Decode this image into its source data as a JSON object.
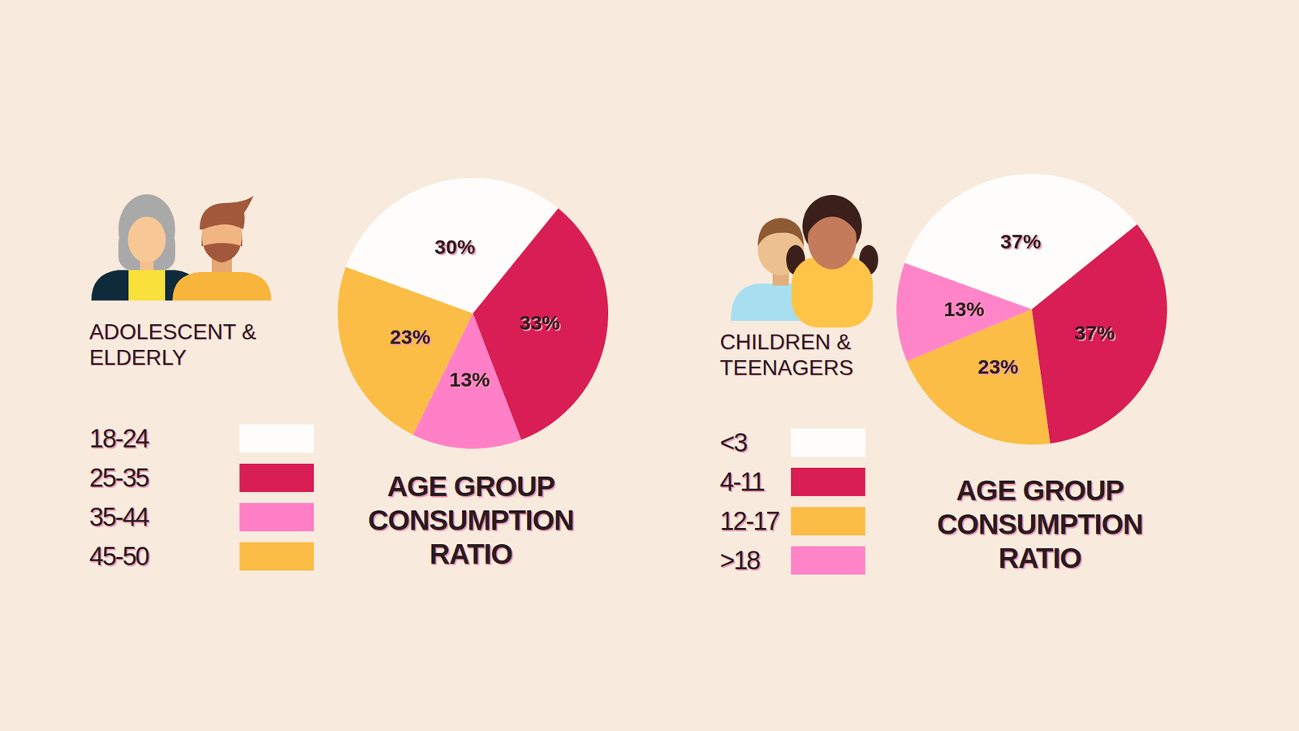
{
  "chart_data": [
    {
      "type": "pie",
      "title": "AGE GROUP CONSUMPTION RATIO",
      "subtitle": "ADOLESCENT & ELDERLY",
      "categories": [
        "18-24",
        "25-35",
        "35-44",
        "45-50"
      ],
      "values": [
        30,
        33,
        13,
        23
      ],
      "value_labels": [
        "30%",
        "33%",
        "13%",
        "23%"
      ],
      "colors": [
        "#fffdfb",
        "#d81e54",
        "#ff80c6",
        "#fbbd45"
      ],
      "data_labels": true,
      "legend": "left"
    },
    {
      "type": "pie",
      "title": "AGE GROUP CONSUMPTION RATIO",
      "subtitle": "CHILDREN & TEENAGERS",
      "categories": [
        "<3",
        "4-11",
        "12-17",
        ">18"
      ],
      "values": [
        37,
        37,
        23,
        13
      ],
      "value_labels": [
        "37%",
        "37%",
        "23%",
        "13%"
      ],
      "colors": [
        "#fffdfb",
        "#d81e54",
        "#fbbd45",
        "#ff85c8"
      ],
      "data_labels": true,
      "legend": "left"
    }
  ]
}
